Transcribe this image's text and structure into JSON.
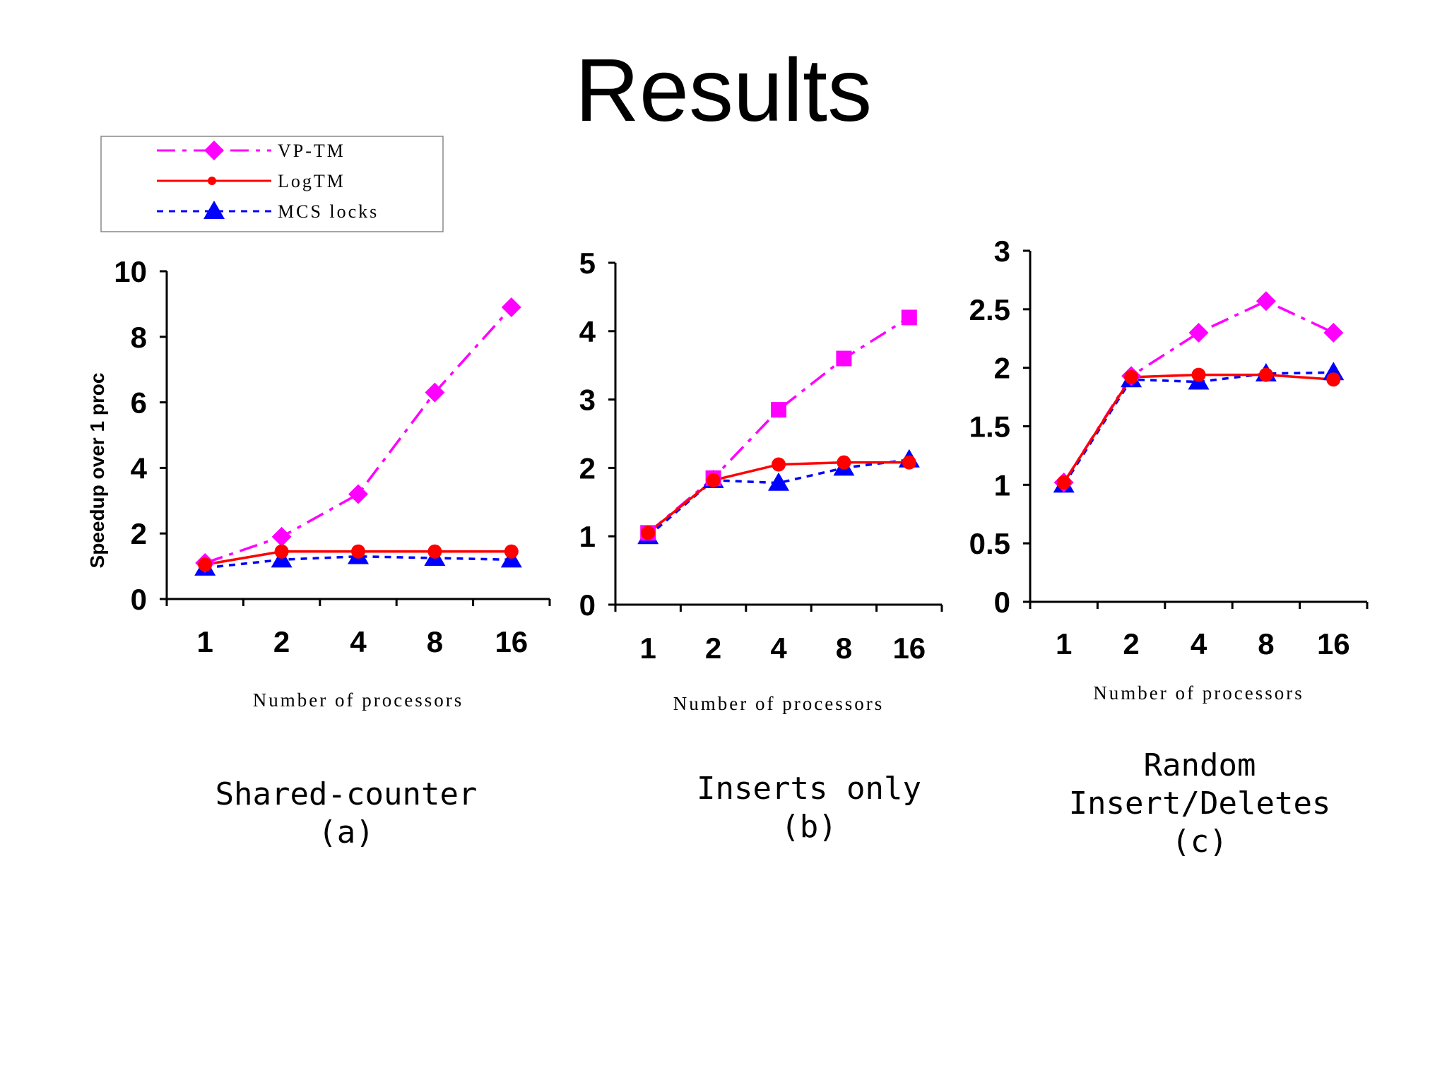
{
  "title": "Results",
  "legend": [
    {
      "name": "VP-TM",
      "color": "#ff00ff"
    },
    {
      "name": "LogTM",
      "color": "#ff0000"
    },
    {
      "name": "MCS locks",
      "color": "#0000ff"
    }
  ],
  "chart_data": [
    {
      "type": "line",
      "title": "Shared-counter",
      "caption_lines": [
        "Shared-counter",
        "(a)"
      ],
      "categories": [
        "1",
        "2",
        "4",
        "8",
        "16"
      ],
      "xlabel": "Number of processors",
      "ylabel": "Speedup over 1 proc",
      "ylim": [
        0,
        10
      ],
      "yticks": [
        0,
        2,
        4,
        6,
        8,
        10
      ],
      "ytick_labels": [
        "0",
        "2",
        "4",
        "6",
        "8",
        "10"
      ],
      "series": [
        {
          "name": "VP-TM",
          "values": [
            1.1,
            1.9,
            3.2,
            6.3,
            8.9
          ]
        },
        {
          "name": "LogTM",
          "values": [
            1.05,
            1.45,
            1.45,
            1.45,
            1.45
          ]
        },
        {
          "name": "MCS locks",
          "values": [
            0.95,
            1.2,
            1.3,
            1.25,
            1.2
          ]
        }
      ]
    },
    {
      "type": "line",
      "title": "Inserts only",
      "caption_lines": [
        "Inserts only",
        "(b)"
      ],
      "categories": [
        "1",
        "2",
        "4",
        "8",
        "16"
      ],
      "xlabel": "Number of processors",
      "ylim": [
        0,
        5
      ],
      "yticks": [
        0,
        1,
        2,
        3,
        4,
        5
      ],
      "ytick_labels": [
        "0",
        "1",
        "2",
        "3",
        "4",
        "5"
      ],
      "series": [
        {
          "name": "VP-TM",
          "values": [
            1.05,
            1.85,
            2.85,
            3.6,
            4.2
          ]
        },
        {
          "name": "LogTM",
          "values": [
            1.05,
            1.82,
            2.05,
            2.08,
            2.08
          ]
        },
        {
          "name": "MCS locks",
          "values": [
            1.0,
            1.82,
            1.78,
            2.0,
            2.12
          ]
        }
      ]
    },
    {
      "type": "line",
      "title": "Random Insert/Deletes",
      "caption_lines": [
        "Random",
        "Insert/Deletes",
        "(c)"
      ],
      "categories": [
        "1",
        "2",
        "4",
        "8",
        "16"
      ],
      "xlabel": "Number of processors",
      "ylim": [
        0,
        3
      ],
      "yticks": [
        0,
        0.5,
        1,
        1.5,
        2,
        2.5,
        3
      ],
      "ytick_labels": [
        "0",
        "0.5",
        "1",
        "1.5",
        "2",
        "2.5",
        "3"
      ],
      "series": [
        {
          "name": "VP-TM",
          "values": [
            1.02,
            1.93,
            2.3,
            2.57,
            2.3
          ]
        },
        {
          "name": "LogTM",
          "values": [
            1.02,
            1.92,
            1.94,
            1.94,
            1.9
          ]
        },
        {
          "name": "MCS locks",
          "values": [
            1.0,
            1.9,
            1.88,
            1.95,
            1.96
          ]
        }
      ]
    }
  ]
}
